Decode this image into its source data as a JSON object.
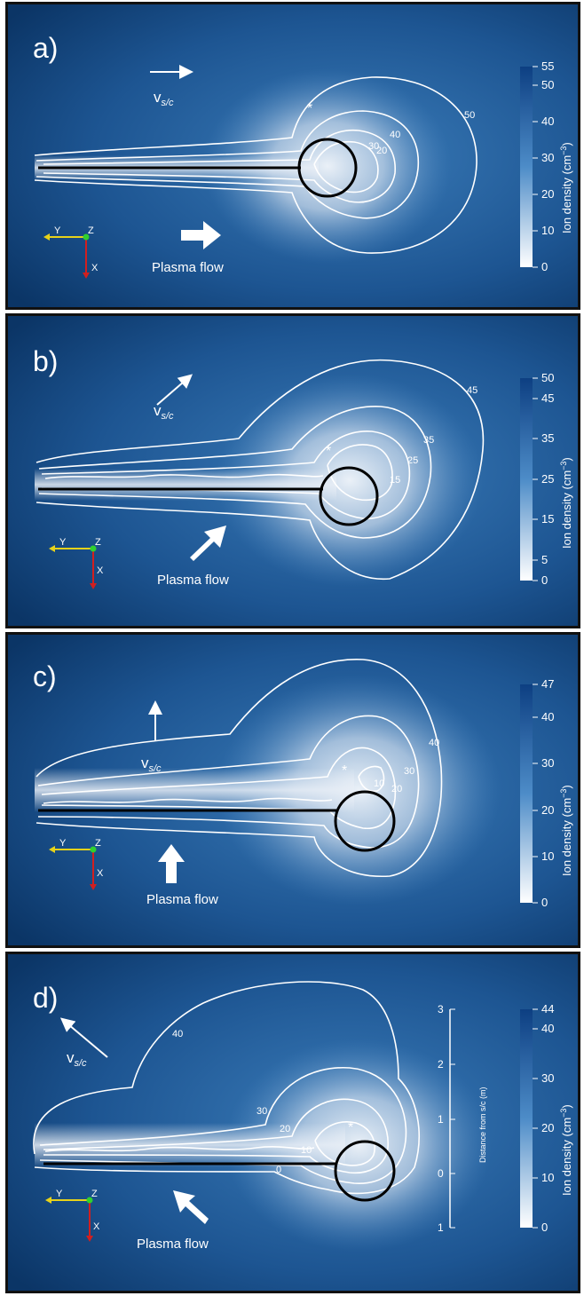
{
  "colors": {
    "background_dark": "#0b3566",
    "background_mid": "#2d6aa5",
    "contour": "#ffffff",
    "black_line": "#000000",
    "colorbar_top": "#0d3f82",
    "colorbar_bottom": "#ffffff",
    "axis_y_arrow": "#e7d21a",
    "axis_x_arrow": "#d21f1f",
    "axis_z_dot": "#2fd12f"
  },
  "icons": [
    "velocity-arrow-icon",
    "plasma-flow-arrow-icon",
    "axis-triad-icon",
    "asterisk-marker-icon"
  ],
  "panels": [
    {
      "label": "a)",
      "velocity_label": "v",
      "velocity_subscript": "s/c",
      "flow_label": "Plasma flow",
      "axes": {
        "y": "Y",
        "z": "Z",
        "x": "X"
      },
      "asterisk": "*",
      "contour_labels": [
        "50",
        "40",
        "30",
        "20"
      ],
      "colorbar": {
        "title": "Ion density (cm",
        "exponent": "−3",
        "close": ")",
        "ticks": [
          "55",
          "50",
          "40",
          "30",
          "20",
          "10",
          "0"
        ]
      }
    },
    {
      "label": "b)",
      "velocity_label": "v",
      "velocity_subscript": "s/c",
      "flow_label": "Plasma flow",
      "axes": {
        "y": "Y",
        "z": "Z",
        "x": "X"
      },
      "asterisk": "*",
      "contour_labels": [
        "45",
        "35",
        "25",
        "15"
      ],
      "colorbar": {
        "title": "Ion density (cm",
        "exponent": "−3",
        "close": ")",
        "ticks": [
          "50",
          "45",
          "35",
          "25",
          "15",
          "5",
          "0"
        ]
      }
    },
    {
      "label": "c)",
      "velocity_label": "v",
      "velocity_subscript": "s/c",
      "flow_label": "Plasma flow",
      "axes": {
        "y": "Y",
        "z": "Z",
        "x": "X"
      },
      "asterisk": "*",
      "contour_labels": [
        "40",
        "30",
        "20",
        "10"
      ],
      "colorbar": {
        "title": "Ion density (cm",
        "exponent": "−3",
        "close": ")",
        "ticks": [
          "47",
          "40",
          "30",
          "20",
          "10",
          "0"
        ]
      }
    },
    {
      "label": "d)",
      "velocity_label": "v",
      "velocity_subscript": "s/c",
      "flow_label": "Plasma flow",
      "axes": {
        "y": "Y",
        "z": "Z",
        "x": "X"
      },
      "asterisk": "*",
      "contour_labels": [
        "40",
        "30",
        "20",
        "10",
        "0"
      ],
      "distance_scale": {
        "title": "Distance from s/c (m)",
        "ticks": [
          "3",
          "2",
          "1",
          "0",
          "1"
        ]
      },
      "colorbar": {
        "title": "Ion density (cm",
        "exponent": "−3",
        "close": ")",
        "ticks": [
          "44",
          "40",
          "30",
          "20",
          "10",
          "0"
        ]
      }
    }
  ]
}
